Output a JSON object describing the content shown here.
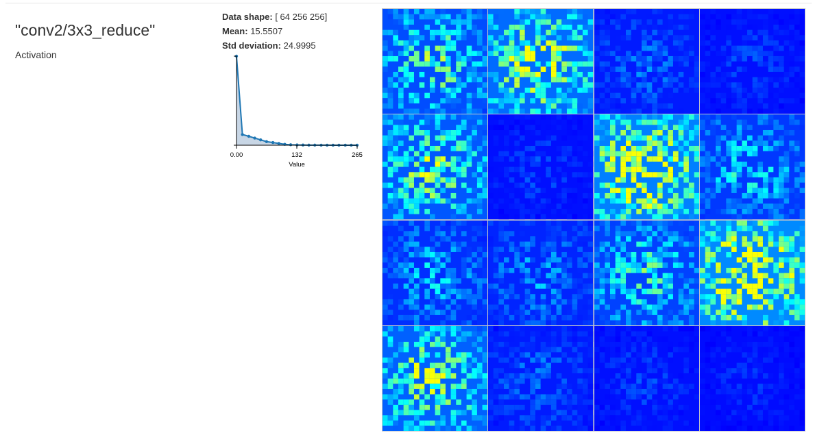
{
  "layer": {
    "name": "\"conv2/3x3_reduce\"",
    "type": "Activation"
  },
  "stats": {
    "shape_label": "Data shape:",
    "shape_value": "[ 64 256 256]",
    "mean_label": "Mean:",
    "mean_value": "15.5507",
    "std_label": "Std deviation:",
    "std_value": "24.9995"
  },
  "chart_data": {
    "type": "area",
    "xlabel": "Value",
    "xticks": [
      "0.00",
      "132",
      "265"
    ],
    "xlim": [
      0,
      265
    ],
    "x": [
      0,
      13,
      27,
      40,
      53,
      66,
      80,
      93,
      106,
      119,
      133,
      146,
      159,
      172,
      186,
      199,
      212,
      225,
      239,
      252,
      265
    ],
    "y": [
      100,
      12,
      10,
      8,
      6,
      4,
      3,
      2,
      1,
      0.5,
      0.3,
      0.2,
      0.1,
      0.1,
      0.05,
      0.05,
      0.03,
      0.02,
      0.02,
      0.01,
      0.01
    ],
    "ylim": [
      0,
      100
    ],
    "grid": false,
    "line_color": "#1f77b4",
    "fill_color": "#c8d6e5"
  },
  "feature_maps": {
    "rows": 4,
    "cols": 4,
    "colormap": "jet",
    "brightness": [
      0.4,
      0.55,
      0.15,
      0.1,
      0.45,
      0.1,
      0.65,
      0.3,
      0.25,
      0.2,
      0.35,
      0.7,
      0.5,
      0.15,
      0.1,
      0.08
    ]
  }
}
